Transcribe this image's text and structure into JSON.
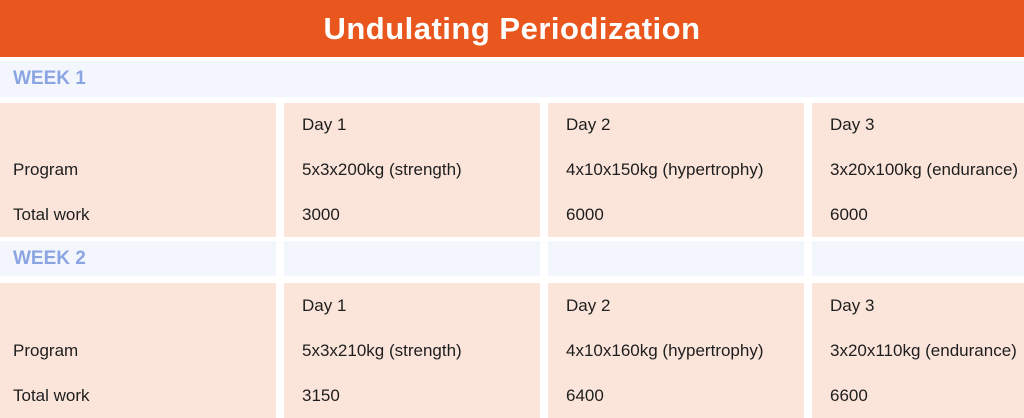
{
  "chart_data": {
    "type": "table",
    "title": "Undulating Periodization",
    "row_labels": {
      "program": "Program",
      "total_work": "Total work"
    },
    "weeks": [
      {
        "label": "WEEK 1",
        "days": [
          {
            "name": "Day 1",
            "program": "5x3x200kg (strength)",
            "total_work": 3000
          },
          {
            "name": "Day 2",
            "program": "4x10x150kg (hypertrophy)",
            "total_work": 6000
          },
          {
            "name": "Day 3",
            "program": "3x20x100kg (endurance)",
            "total_work": 6000
          }
        ]
      },
      {
        "label": "WEEK 2",
        "days": [
          {
            "name": "Day 1",
            "program": "5x3x210kg (strength)",
            "total_work": 3150
          },
          {
            "name": "Day 2",
            "program": "4x10x160kg (hypertrophy)",
            "total_work": 6400
          },
          {
            "name": "Day 3",
            "program": "3x20x110kg (endurance)",
            "total_work": 6600
          }
        ]
      }
    ],
    "layout": {
      "columns": [
        "row-labels",
        "Day 1",
        "Day 2",
        "Day 3"
      ],
      "grid": "off",
      "gutter_color": "#FFFFFF"
    }
  },
  "colors": {
    "banner_orange": "#E9571E",
    "title_text": "#FFFFFF",
    "week_header_bg": "#F3F6FC",
    "week_label_blue": "#8BA5E3",
    "cell_peach": "#FBE5DB",
    "body_text": "#1E1E1E"
  }
}
